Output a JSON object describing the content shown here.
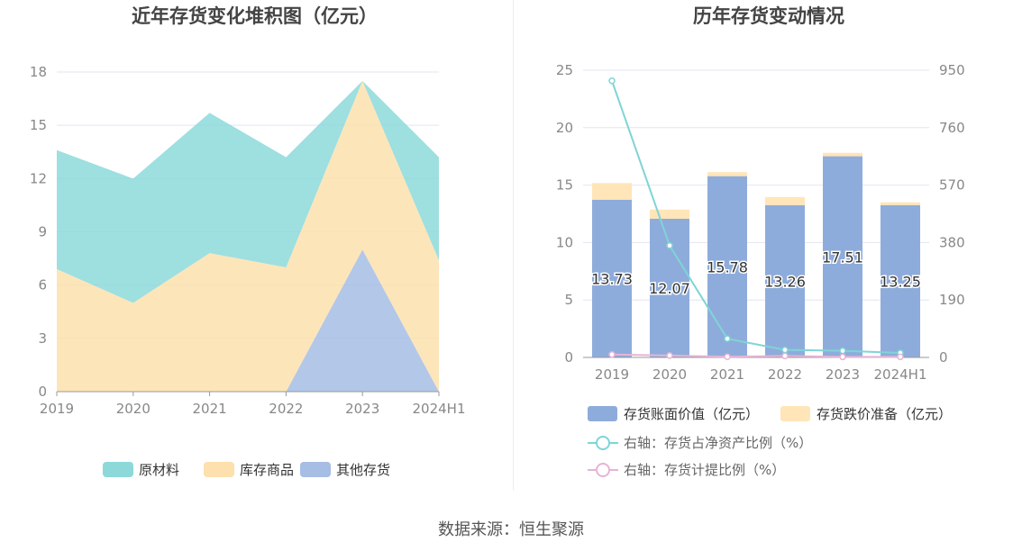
{
  "titles": {
    "left": "近年存货变化堆积图（亿元）",
    "right": "历年存货变动情况"
  },
  "source": "数据来源：恒生聚源",
  "colors": {
    "raw_materials": "#8dd9da",
    "finished_goods": "#fde0ae",
    "other_inventory": "#a6bde4",
    "book_value": "#8eacdb",
    "impairment": "#ffe5b8",
    "net_asset_ratio": "#7fd4d6",
    "provision_ratio": "#e6b4d6",
    "grid": "#e3e6f0",
    "axis": "#999999"
  },
  "chart_data": [
    {
      "type": "area",
      "stacked": true,
      "title": "近年存货变化堆积图（亿元）",
      "categories": [
        "2019",
        "2020",
        "2021",
        "2022",
        "2023",
        "2024H1"
      ],
      "series": [
        {
          "name": "原材料",
          "values": [
            6.7,
            7.0,
            7.9,
            6.2,
            0.0,
            5.8
          ]
        },
        {
          "name": "库存商品",
          "values": [
            6.9,
            5.0,
            7.8,
            7.0,
            9.5,
            7.4
          ]
        },
        {
          "name": "其他存货",
          "values": [
            0.0,
            0.0,
            0.0,
            0.0,
            8.0,
            0.0
          ]
        }
      ],
      "ylim": [
        0,
        18
      ],
      "yticks": [
        0,
        3,
        6,
        9,
        12,
        15,
        18
      ],
      "grid": true,
      "legend": "bottom"
    },
    {
      "type": "bar",
      "stacked": true,
      "title": "历年存货变动情况",
      "categories": [
        "2019",
        "2020",
        "2021",
        "2022",
        "2023",
        "2024H1"
      ],
      "series": [
        {
          "name": "存货账面价值（亿元）",
          "values": [
            13.73,
            12.07,
            15.78,
            13.26,
            17.51,
            13.25
          ],
          "labels": [
            "13.73",
            "12.07",
            "15.78",
            "13.26",
            "17.51",
            "13.25"
          ]
        },
        {
          "name": "存货跌价准备（亿元）",
          "values": [
            1.45,
            0.8,
            0.35,
            0.7,
            0.3,
            0.25
          ]
        }
      ],
      "lines": [
        {
          "name": "右轴：存货占净资产比例（%）",
          "axis": "right",
          "values": [
            915,
            370,
            62,
            25,
            22,
            15
          ]
        },
        {
          "name": "右轴：存货计提比例（%）",
          "axis": "right",
          "values": [
            9.5,
            6.2,
            2.2,
            5.0,
            1.7,
            1.9
          ]
        }
      ],
      "ylim": [
        0,
        25
      ],
      "yticks": [
        0,
        5,
        10,
        15,
        20,
        25
      ],
      "y2lim": [
        0,
        950
      ],
      "y2ticks": [
        0,
        190,
        380,
        570,
        760,
        950
      ],
      "grid": true,
      "legend": "bottom"
    }
  ]
}
